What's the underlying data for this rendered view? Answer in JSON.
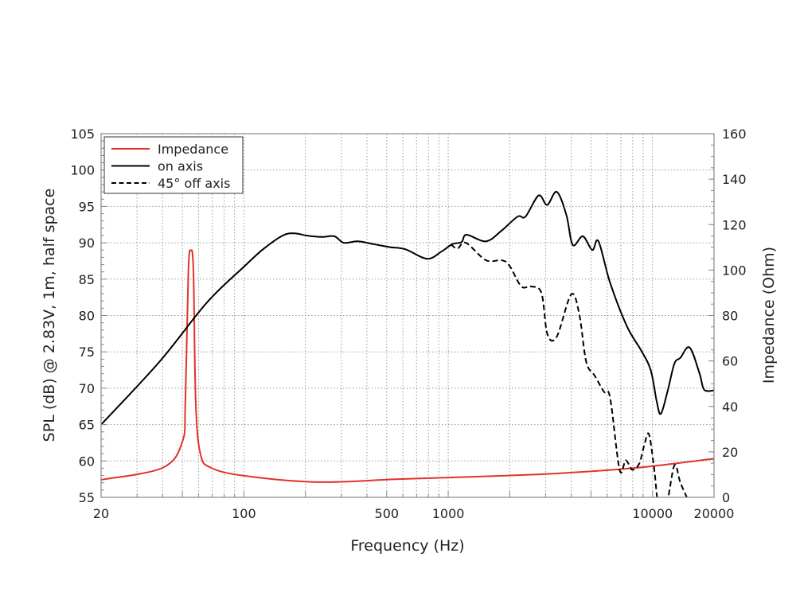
{
  "chart_data": {
    "type": "line",
    "xlabel": "Frequency (Hz)",
    "ylabel": "SPL (dB) @ 2.83V, 1m, half space",
    "y2label": "Impedance (Ohm)",
    "xscale": "log",
    "xlim": [
      20,
      20000
    ],
    "ylim": [
      55,
      105
    ],
    "y2lim": [
      0,
      160
    ],
    "xticks": [
      "20",
      "100",
      "500",
      "1000",
      "10000",
      "20000"
    ],
    "xtick_values": [
      20,
      100,
      500,
      1000,
      10000,
      20000
    ],
    "yticks": [
      "55",
      "60",
      "65",
      "70",
      "75",
      "80",
      "85",
      "90",
      "95",
      "100",
      "105"
    ],
    "y2ticks": [
      "0",
      "20",
      "40",
      "60",
      "80",
      "100",
      "120",
      "140",
      "160"
    ],
    "grid": true,
    "legend_position": "top-left",
    "series": [
      {
        "name": "Impedance",
        "axis": "right",
        "color": "#e0332a",
        "style": "solid",
        "x": [
          20,
          40,
          50,
          51.7,
          53.5,
          55,
          56.6,
          58.1,
          61.3,
          69.1,
          100,
          232,
          568,
          1390,
          3400,
          8350,
          20000
        ],
        "y": [
          7.7,
          13,
          24.5,
          42,
          100,
          108.5,
          100,
          42,
          19,
          13,
          9.5,
          6.7,
          8,
          9.1,
          10.5,
          13,
          17
        ]
      },
      {
        "name": "on axis",
        "axis": "left",
        "color": "#000000",
        "style": "solid",
        "x": [
          20,
          38.5,
          66,
          100,
          124,
          155,
          177,
          202,
          241,
          277,
          308,
          361,
          433,
          518,
          618,
          788,
          928,
          1045,
          1163,
          1230,
          1532,
          1830,
          2187,
          2390,
          2770,
          3050,
          3400,
          3790,
          4070,
          4560,
          5070,
          5440,
          6200,
          7500,
          8800,
          9800,
          10500,
          11000,
          11900,
          12800,
          13700,
          15200,
          17000,
          17900,
          20000
        ],
        "y": [
          65.0,
          73.6,
          81.8,
          86.7,
          89.1,
          91.0,
          91.3,
          91.0,
          90.8,
          90.9,
          90.0,
          90.2,
          89.8,
          89.4,
          89.1,
          87.8,
          88.8,
          89.8,
          90.1,
          91.1,
          90.2,
          91.7,
          93.6,
          93.6,
          96.5,
          95.2,
          97.0,
          93.8,
          89.7,
          90.9,
          89.0,
          90.2,
          84.5,
          78.5,
          75.2,
          72.5,
          68.1,
          66.5,
          69.8,
          73.4,
          74.2,
          75.6,
          72.0,
          69.8,
          69.7
        ]
      },
      {
        "name": "45° off axis",
        "axis": "left",
        "color": "#000000",
        "style": "dashed",
        "x": [
          1030,
          1110,
          1220,
          1530,
          1830,
          2000,
          2280,
          2540,
          2860,
          3060,
          3400,
          4000,
          4380,
          4740,
          5220,
          5790,
          6200,
          6900,
          7400,
          7950,
          8600,
          9100,
          9600,
          10200,
          10700,
          11700,
          12800,
          13700,
          15000
        ],
        "y": [
          89.8,
          89.2,
          90.0,
          87.6,
          87.6,
          86.8,
          84.0,
          84.0,
          83.1,
          77.4,
          77.1,
          82.9,
          80.2,
          73.6,
          71.7,
          69.5,
          68.7,
          58.8,
          60.1,
          58.8,
          59.6,
          62.1,
          63.7,
          58.8,
          54,
          54,
          59.4,
          57.0,
          54.5
        ]
      }
    ]
  }
}
